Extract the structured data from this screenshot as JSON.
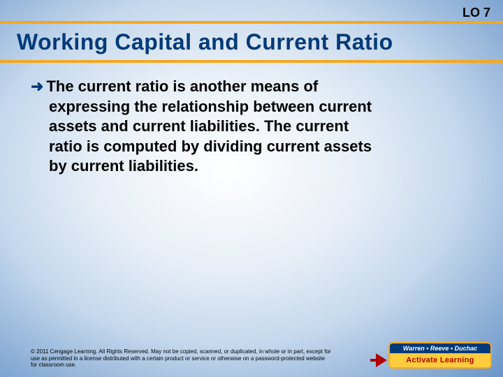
{
  "header": {
    "tag": "LO 7"
  },
  "title": "Working Capital and Current Ratio",
  "body": {
    "line1_prefix": "The ",
    "line1_bold": "current ratio",
    "line1_rest": " is another means of",
    "line2": "expressing the relationship between current",
    "line3": "assets and current liabilities. The current",
    "line4": "ratio is computed by dividing current assets",
    "line5": "by current liabilities."
  },
  "copyright": "© 2011 Cengage Learning. All Rights Reserved. May not be copied, scanned, or duplicated, in whole or in part, except for use as permitted in a license distributed with a certain product or service or otherwise on a password-protected website for classroom use.",
  "logo": {
    "top": "Warren • Reeve • Duchac",
    "bottom": "Activate Learning"
  },
  "colors": {
    "title_color": "#003a78",
    "rule_color": "#f5a81c",
    "arrow_color": "#003a78",
    "logo_border": "#f5a81c",
    "logo_top_bg": "#003a78",
    "logo_bottom_bg": "#ffcc3d",
    "logo_bottom_text": "#b00000"
  }
}
